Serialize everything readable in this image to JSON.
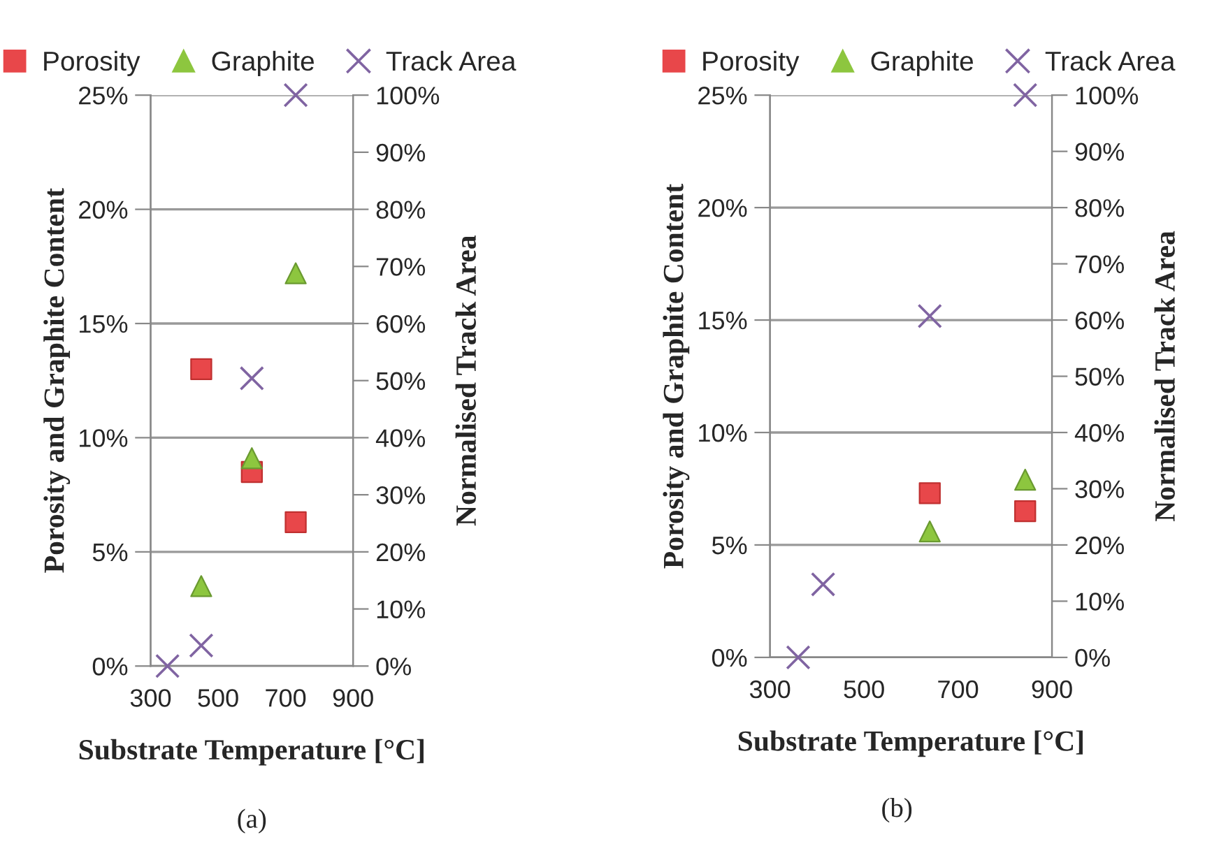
{
  "chart_data": [
    {
      "type": "scatter",
      "xlabel": "Substrate Temperature [°C]",
      "ylabel": "Porosity and Graphite Content",
      "y2label": "Normalised Track Area",
      "annotations": [
        "(a)"
      ],
      "xlim": [
        300,
        900
      ],
      "xticks": [
        300,
        500,
        700,
        900
      ],
      "ylim": [
        0,
        25
      ],
      "yticks": [
        {
          "value": 0,
          "label": "0%"
        },
        {
          "value": 5,
          "label": "5%"
        },
        {
          "value": 10,
          "label": "10%"
        },
        {
          "value": 15,
          "label": "15%"
        },
        {
          "value": 20,
          "label": "20%"
        },
        {
          "value": 25,
          "label": "25%"
        }
      ],
      "y2lim": [
        0,
        100
      ],
      "y2ticks": [
        {
          "value": 0,
          "label": "0%"
        },
        {
          "value": 10,
          "label": "10%"
        },
        {
          "value": 20,
          "label": "20%"
        },
        {
          "value": 30,
          "label": "30%"
        },
        {
          "value": 40,
          "label": "40%"
        },
        {
          "value": 50,
          "label": "50%"
        },
        {
          "value": 60,
          "label": "60%"
        },
        {
          "value": 70,
          "label": "70%"
        },
        {
          "value": 80,
          "label": "80%"
        },
        {
          "value": 90,
          "label": "90%"
        },
        {
          "value": 100,
          "label": "100%"
        }
      ],
      "grid": "y",
      "legend": "top",
      "series": [
        {
          "name": "Porosity",
          "color": "#e8474a",
          "marker": "square",
          "x": [
            450,
            600,
            730
          ],
          "values": [
            13.0,
            8.5,
            6.3
          ]
        },
        {
          "name": "Graphite",
          "color": "#8dc63f",
          "marker": "triangle",
          "x": [
            450,
            600,
            730
          ],
          "values": [
            3.5,
            9.1,
            17.2
          ]
        },
        {
          "name": "Track Area",
          "color": "#8064a2",
          "marker": "cross",
          "axis": "y2",
          "x": [
            350,
            450,
            600,
            730
          ],
          "values": [
            0,
            3.6,
            50.4,
            100
          ]
        }
      ]
    },
    {
      "type": "scatter",
      "xlabel": "Substrate Temperature [°C]",
      "ylabel": "Porosity and Graphite Content",
      "y2label": "Normalised Track Area",
      "annotations": [
        "(b)"
      ],
      "xlim": [
        300,
        900
      ],
      "xticks": [
        300,
        500,
        700,
        900
      ],
      "ylim": [
        0,
        25
      ],
      "yticks": [
        {
          "value": 0,
          "label": "0%"
        },
        {
          "value": 5,
          "label": "5%"
        },
        {
          "value": 10,
          "label": "10%"
        },
        {
          "value": 15,
          "label": "15%"
        },
        {
          "value": 20,
          "label": "20%"
        },
        {
          "value": 25,
          "label": "25%"
        }
      ],
      "y2lim": [
        0,
        100
      ],
      "y2ticks": [
        {
          "value": 0,
          "label": "0%"
        },
        {
          "value": 10,
          "label": "10%"
        },
        {
          "value": 20,
          "label": "20%"
        },
        {
          "value": 30,
          "label": "30%"
        },
        {
          "value": 40,
          "label": "40%"
        },
        {
          "value": 50,
          "label": "50%"
        },
        {
          "value": 60,
          "label": "60%"
        },
        {
          "value": 70,
          "label": "70%"
        },
        {
          "value": 80,
          "label": "80%"
        },
        {
          "value": 90,
          "label": "90%"
        },
        {
          "value": 100,
          "label": "100%"
        }
      ],
      "grid": "y",
      "legend": "top",
      "series": [
        {
          "name": "Porosity",
          "color": "#e8474a",
          "marker": "square",
          "x": [
            640,
            843
          ],
          "values": [
            7.3,
            6.5
          ]
        },
        {
          "name": "Graphite",
          "color": "#8dc63f",
          "marker": "triangle",
          "x": [
            640,
            843
          ],
          "values": [
            5.6,
            7.9
          ]
        },
        {
          "name": "Track Area",
          "color": "#8064a2",
          "marker": "cross",
          "axis": "y2",
          "x": [
            360,
            413,
            640,
            843
          ],
          "values": [
            0,
            13.0,
            60.7,
            100
          ]
        }
      ]
    }
  ]
}
